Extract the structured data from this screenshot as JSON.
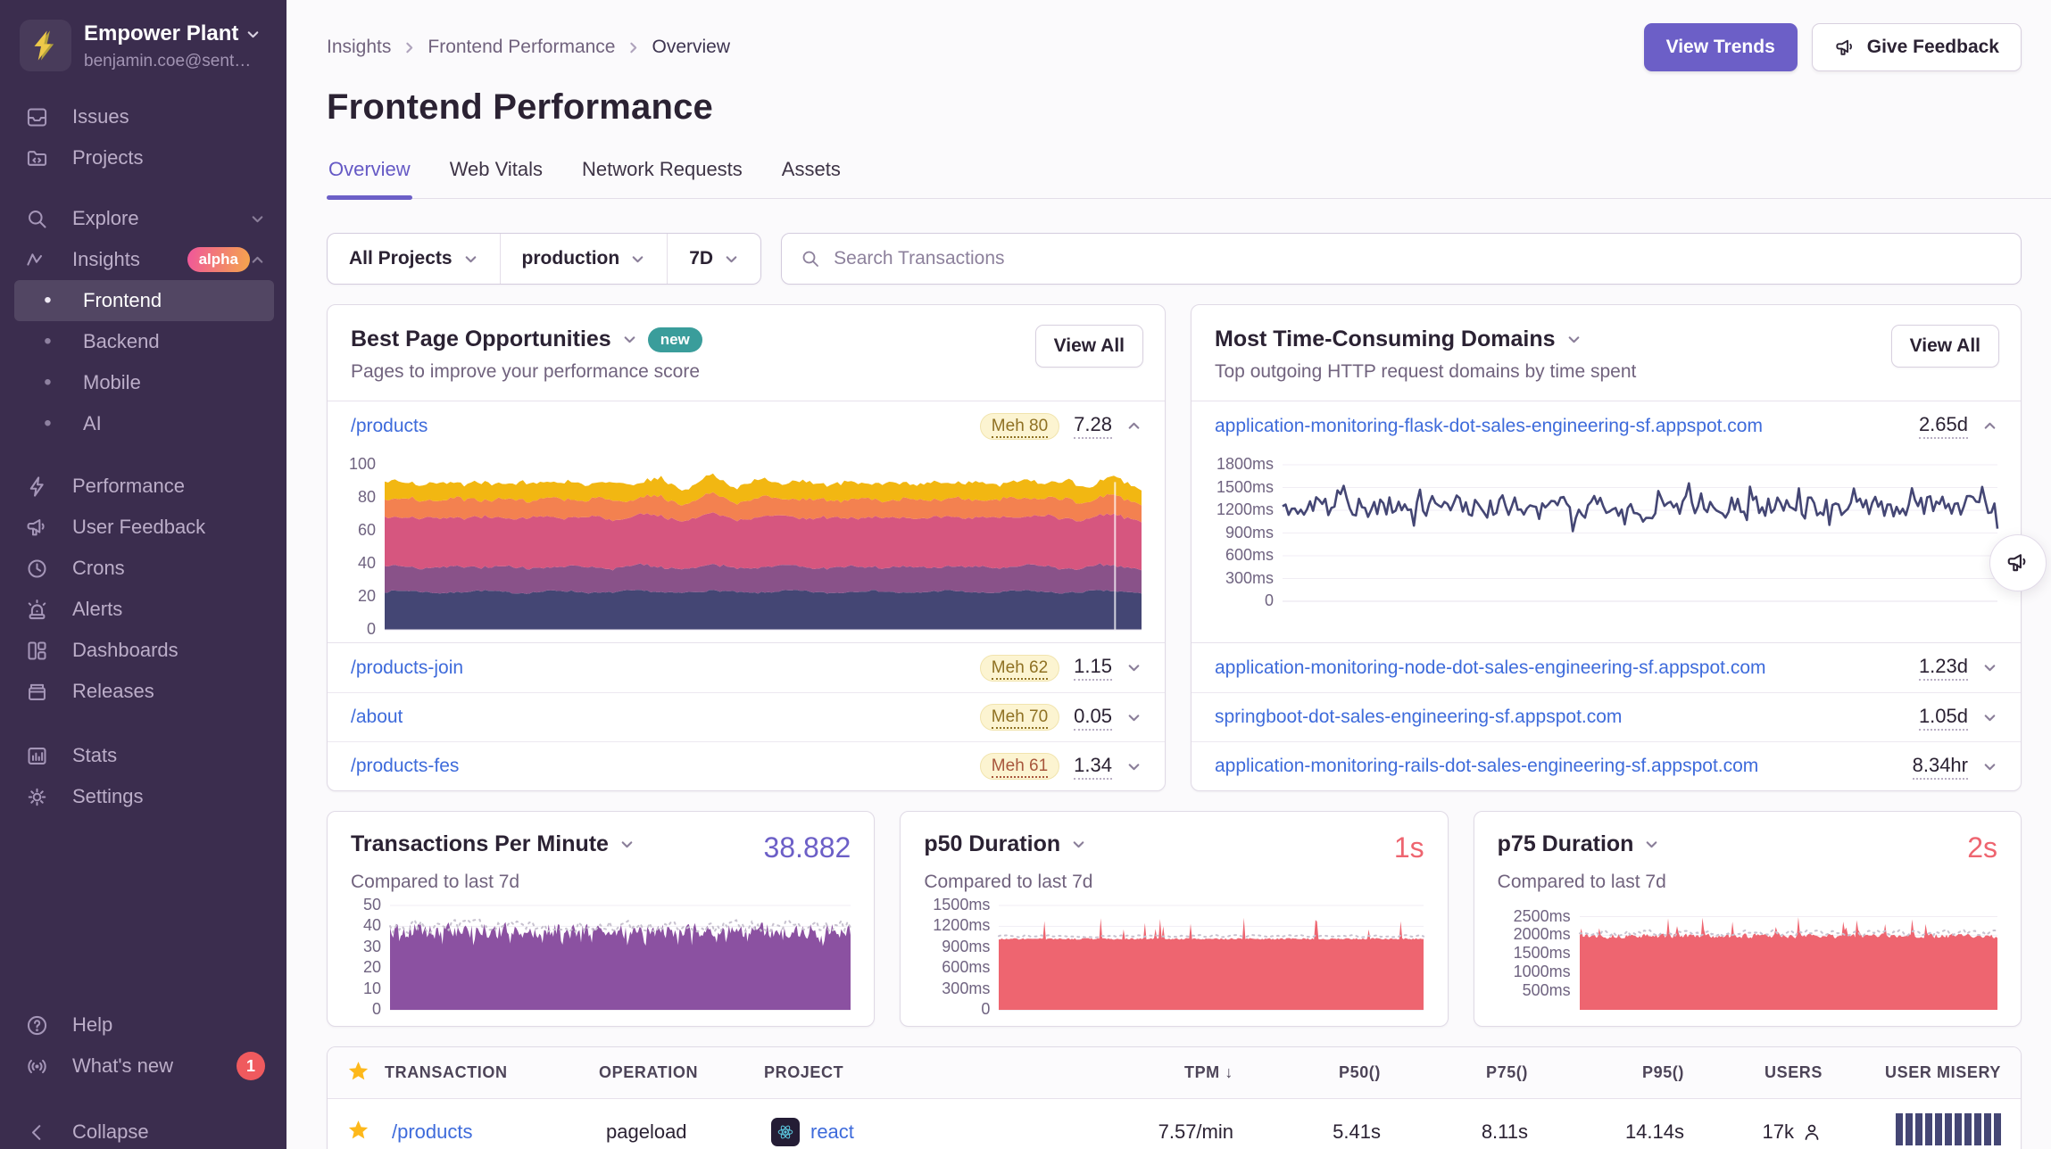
{
  "sidebar": {
    "org": {
      "name": "Empower Plant",
      "email": "benjamin.coe@sent…"
    },
    "primary": [
      {
        "label": "Issues"
      },
      {
        "label": "Projects"
      }
    ],
    "explore": {
      "label": "Explore"
    },
    "insights": {
      "label": "Insights",
      "badge": "alpha"
    },
    "insights_children": [
      {
        "label": "Frontend"
      },
      {
        "label": "Backend"
      },
      {
        "label": "Mobile"
      },
      {
        "label": "AI"
      }
    ],
    "secondary": [
      {
        "label": "Performance"
      },
      {
        "label": "User Feedback"
      },
      {
        "label": "Crons"
      },
      {
        "label": "Alerts"
      },
      {
        "label": "Dashboards"
      },
      {
        "label": "Releases"
      }
    ],
    "tertiary": [
      {
        "label": "Stats"
      },
      {
        "label": "Settings"
      }
    ],
    "footer": {
      "help": "Help",
      "whats_new": "What's new",
      "whats_new_count": "1",
      "collapse": "Collapse"
    }
  },
  "header": {
    "breadcrumbs": [
      "Insights",
      "Frontend Performance",
      "Overview"
    ],
    "title": "Frontend Performance",
    "view_trends": "View Trends",
    "give_feedback": "Give Feedback"
  },
  "tabs": [
    {
      "label": "Overview"
    },
    {
      "label": "Web Vitals"
    },
    {
      "label": "Network Requests"
    },
    {
      "label": "Assets"
    }
  ],
  "filters": {
    "project": "All Projects",
    "environment": "production",
    "date_range": "7D",
    "search_placeholder": "Search Transactions"
  },
  "best_pages": {
    "title": "Best Page Opportunities",
    "new_badge": "new",
    "subtitle": "Pages to improve your performance score",
    "view_all": "View All",
    "rows": [
      {
        "page": "/products",
        "badge": "Meh 80",
        "badge_color": "#8F7123",
        "value": "7.28"
      },
      {
        "page": "/products-join",
        "badge": "Meh 62",
        "badge_color": "#8F7123",
        "value": "1.15"
      },
      {
        "page": "/about",
        "badge": "Meh 70",
        "badge_color": "#8F7123",
        "value": "0.05"
      },
      {
        "page": "/products-fes",
        "badge": "Meh 61",
        "badge_color": "#A8573C",
        "value": "1.34"
      }
    ]
  },
  "domains": {
    "title": "Most Time-Consuming Domains",
    "subtitle": "Top outgoing HTTP request domains by time spent",
    "view_all": "View All",
    "rows": [
      {
        "domain": "application-monitoring-flask-dot-sales-engineering-sf.appspot.com",
        "value": "2.65d"
      },
      {
        "domain": "application-monitoring-node-dot-sales-engineering-sf.appspot.com",
        "value": "1.23d"
      },
      {
        "domain": "springboot-dot-sales-engineering-sf.appspot.com",
        "value": "1.05d"
      },
      {
        "domain": "application-monitoring-rails-dot-sales-engineering-sf.appspot.com",
        "value": "8.34hr"
      }
    ]
  },
  "metrics": {
    "tpm": {
      "title": "Transactions Per Minute",
      "value": "38.882",
      "value_color": "#6C5FC7",
      "subtitle": "Compared to last 7d"
    },
    "p50": {
      "title": "p50 Duration",
      "value": "1s",
      "value_color": "#EE6570",
      "subtitle": "Compared to last 7d"
    },
    "p75": {
      "title": "p75 Duration",
      "value": "2s",
      "value_color": "#EE6570",
      "subtitle": "Compared to last 7d"
    }
  },
  "table": {
    "headers": {
      "transaction": "TRANSACTION",
      "operation": "OPERATION",
      "project": "PROJECT",
      "tpm": "TPM",
      "sort_indicator": "↓",
      "p50": "P50()",
      "p75": "P75()",
      "p95": "P95()",
      "users": "USERS",
      "user_misery": "USER MISERY"
    },
    "rows": [
      {
        "transaction": "/products",
        "operation": "pageload",
        "project": "react",
        "tpm": "7.57/min",
        "p50": "5.41s",
        "p75": "8.11s",
        "p95": "14.14s",
        "users": "17k",
        "misery_bars": 11
      }
    ]
  },
  "chart_data": [
    {
      "id": "page-opportunities",
      "type": "area",
      "stacked": true,
      "title": "Best Page Opportunities — /products performance score breakdown",
      "ylim": [
        0,
        100
      ],
      "yticks": [
        [
          100,
          "100"
        ],
        [
          80,
          "80"
        ],
        [
          60,
          "60"
        ],
        [
          40,
          "40"
        ],
        [
          20,
          "20"
        ],
        [
          0,
          "0"
        ]
      ],
      "series": [
        {
          "name": "segment-1",
          "color": "#444674",
          "base": 23
        },
        {
          "name": "segment-2",
          "color": "#895289",
          "base": 15
        },
        {
          "name": "segment-3",
          "color": "#D6567F",
          "base": 30
        },
        {
          "name": "segment-4",
          "color": "#F38150",
          "base": 11
        },
        {
          "name": "segment-5",
          "color": "#F2B712",
          "base": 10
        }
      ],
      "stack_total_approx": 89,
      "marker_x_fraction": 0.965,
      "grid": false
    },
    {
      "id": "domain-duration",
      "type": "line",
      "title": "application-monitoring-flask-dot-sales-engineering-sf.appspot.com — time spent",
      "color": "#444674",
      "ylim": [
        0,
        1800
      ],
      "yticks": [
        [
          1800,
          "1800ms"
        ],
        [
          1500,
          "1500ms"
        ],
        [
          1200,
          "1200ms"
        ],
        [
          900,
          "900ms"
        ],
        [
          600,
          "600ms"
        ],
        [
          300,
          "300ms"
        ],
        [
          0,
          "0"
        ]
      ],
      "base": 1250,
      "range": [
        780,
        1620
      ],
      "grid": true
    },
    {
      "id": "tpm",
      "type": "area",
      "title": "Transactions Per Minute",
      "color": "#8B51A1",
      "ylim": [
        0,
        50
      ],
      "yticks": [
        [
          50,
          "50"
        ],
        [
          40,
          "40"
        ],
        [
          30,
          "30"
        ],
        [
          20,
          "20"
        ],
        [
          10,
          "10"
        ],
        [
          0,
          "0"
        ]
      ],
      "base": 38,
      "range": [
        28,
        46
      ],
      "compare_base": 40,
      "compare_color": "#C7C1CF",
      "grid": true
    },
    {
      "id": "p50",
      "type": "area",
      "title": "p50 Duration",
      "color": "#EE6570",
      "ylim": [
        0,
        1500
      ],
      "yticks": [
        [
          1500,
          "1500ms"
        ],
        [
          1200,
          "1200ms"
        ],
        [
          900,
          "900ms"
        ],
        [
          600,
          "600ms"
        ],
        [
          300,
          "300ms"
        ],
        [
          0,
          "0"
        ]
      ],
      "base": 1020,
      "spike_max": 1350,
      "compare_base": 1060,
      "compare_color": "#C7C1CF",
      "grid": true
    },
    {
      "id": "p75",
      "type": "area",
      "title": "p75 Duration",
      "color": "#EE6570",
      "ylim": [
        0,
        2800
      ],
      "yticks": [
        [
          2500,
          "2500ms"
        ],
        [
          2000,
          "2000ms"
        ],
        [
          1500,
          "1500ms"
        ],
        [
          1000,
          "1000ms"
        ],
        [
          500,
          "500ms"
        ]
      ],
      "base": 1980,
      "spike_max": 2600,
      "compare_base": 2060,
      "compare_color": "#C7C1CF",
      "grid": true
    }
  ]
}
